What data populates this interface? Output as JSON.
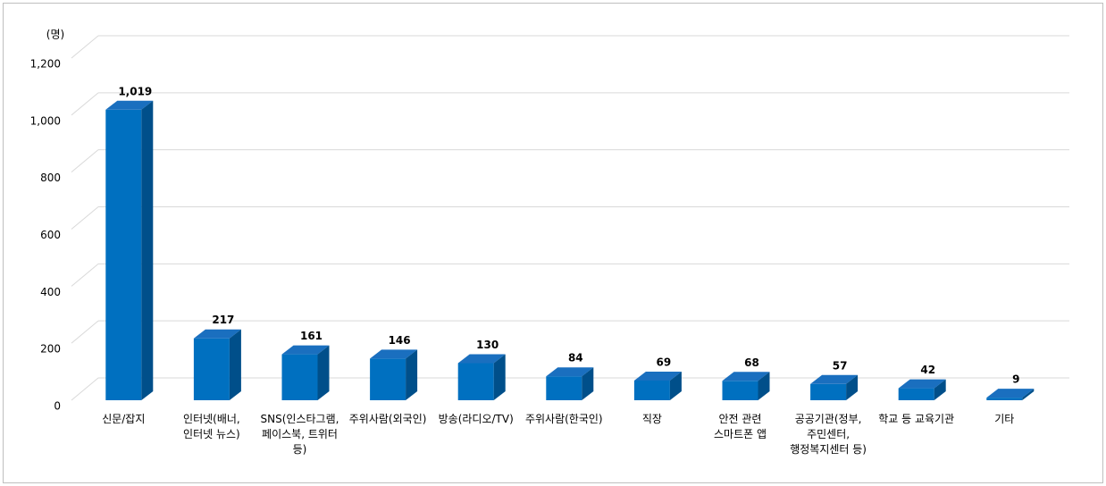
{
  "chart_data": {
    "type": "bar3d",
    "y_unit": "(명)",
    "categories": [
      "신문/잡지",
      "인터넷(배너,\n인터넷 뉴스)",
      "SNS(인스타그램,\n페이스북, 트위터\n등)",
      "주위사람(외국인)",
      "방송(라디오/TV)",
      "주위사람(한국인)",
      "직장",
      "안전 관련\n스마트폰 앱",
      "공공기관(정부,\n주민센터,\n행정복지센터 등)",
      "학교 등 교육기관",
      "기타"
    ],
    "values": [
      1019,
      217,
      161,
      146,
      130,
      84,
      69,
      68,
      57,
      42,
      9
    ],
    "value_labels": [
      "1,019",
      "217",
      "161",
      "146",
      "130",
      "84",
      "69",
      "68",
      "57",
      "42",
      "9"
    ],
    "color": "#0070c0",
    "ylim": [
      0,
      1200
    ],
    "yticks": [
      0,
      200,
      400,
      600,
      800,
      {
        "value": 1000,
        "label": "1,000"
      },
      {
        "value": 1200,
        "label": "1,200"
      }
    ],
    "grid": true
  }
}
